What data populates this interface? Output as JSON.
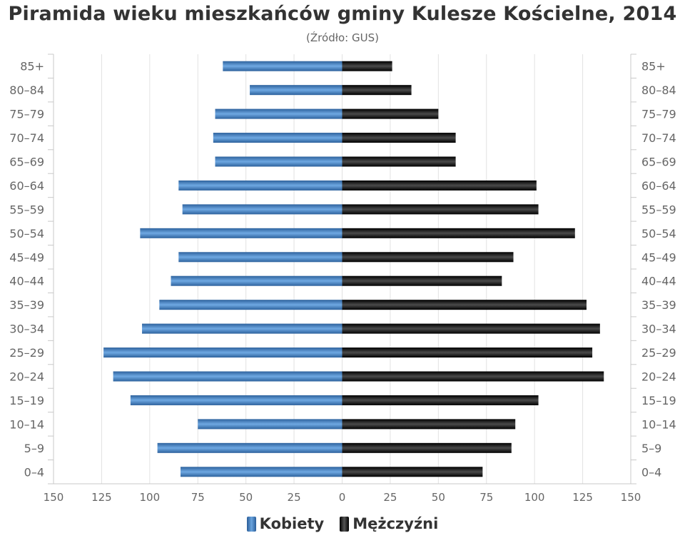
{
  "chart_data": {
    "type": "bar",
    "orientation": "horizontal",
    "title": "Piramida wieku mieszkańców gminy Kulesze Kościelne, 2014",
    "subtitle": "(Źródło: GUS)",
    "categories": [
      "85+",
      "80–84",
      "75–79",
      "70–74",
      "65–69",
      "60–64",
      "55–59",
      "50–54",
      "45–49",
      "40–44",
      "35–39",
      "30–34",
      "25–29",
      "20–24",
      "15–19",
      "10–14",
      "5–9",
      "0–4"
    ],
    "series": [
      {
        "name": "Kobiety",
        "color": "#4a86c8",
        "side": "left",
        "values": [
          62,
          48,
          66,
          67,
          66,
          85,
          83,
          105,
          85,
          89,
          95,
          104,
          124,
          119,
          110,
          75,
          96,
          84
        ]
      },
      {
        "name": "Mężczyźni",
        "color": "#111111",
        "side": "right",
        "values": [
          26,
          36,
          50,
          59,
          59,
          101,
          102,
          121,
          89,
          83,
          127,
          134,
          130,
          136,
          102,
          90,
          88,
          73
        ]
      }
    ],
    "xlim": [
      -150,
      150
    ],
    "xticks": [
      "150",
      "125",
      "100",
      "75",
      "50",
      "25",
      "0",
      "25",
      "50",
      "75",
      "100",
      "125",
      "150"
    ],
    "grid": true,
    "legend": "bottom-center"
  }
}
